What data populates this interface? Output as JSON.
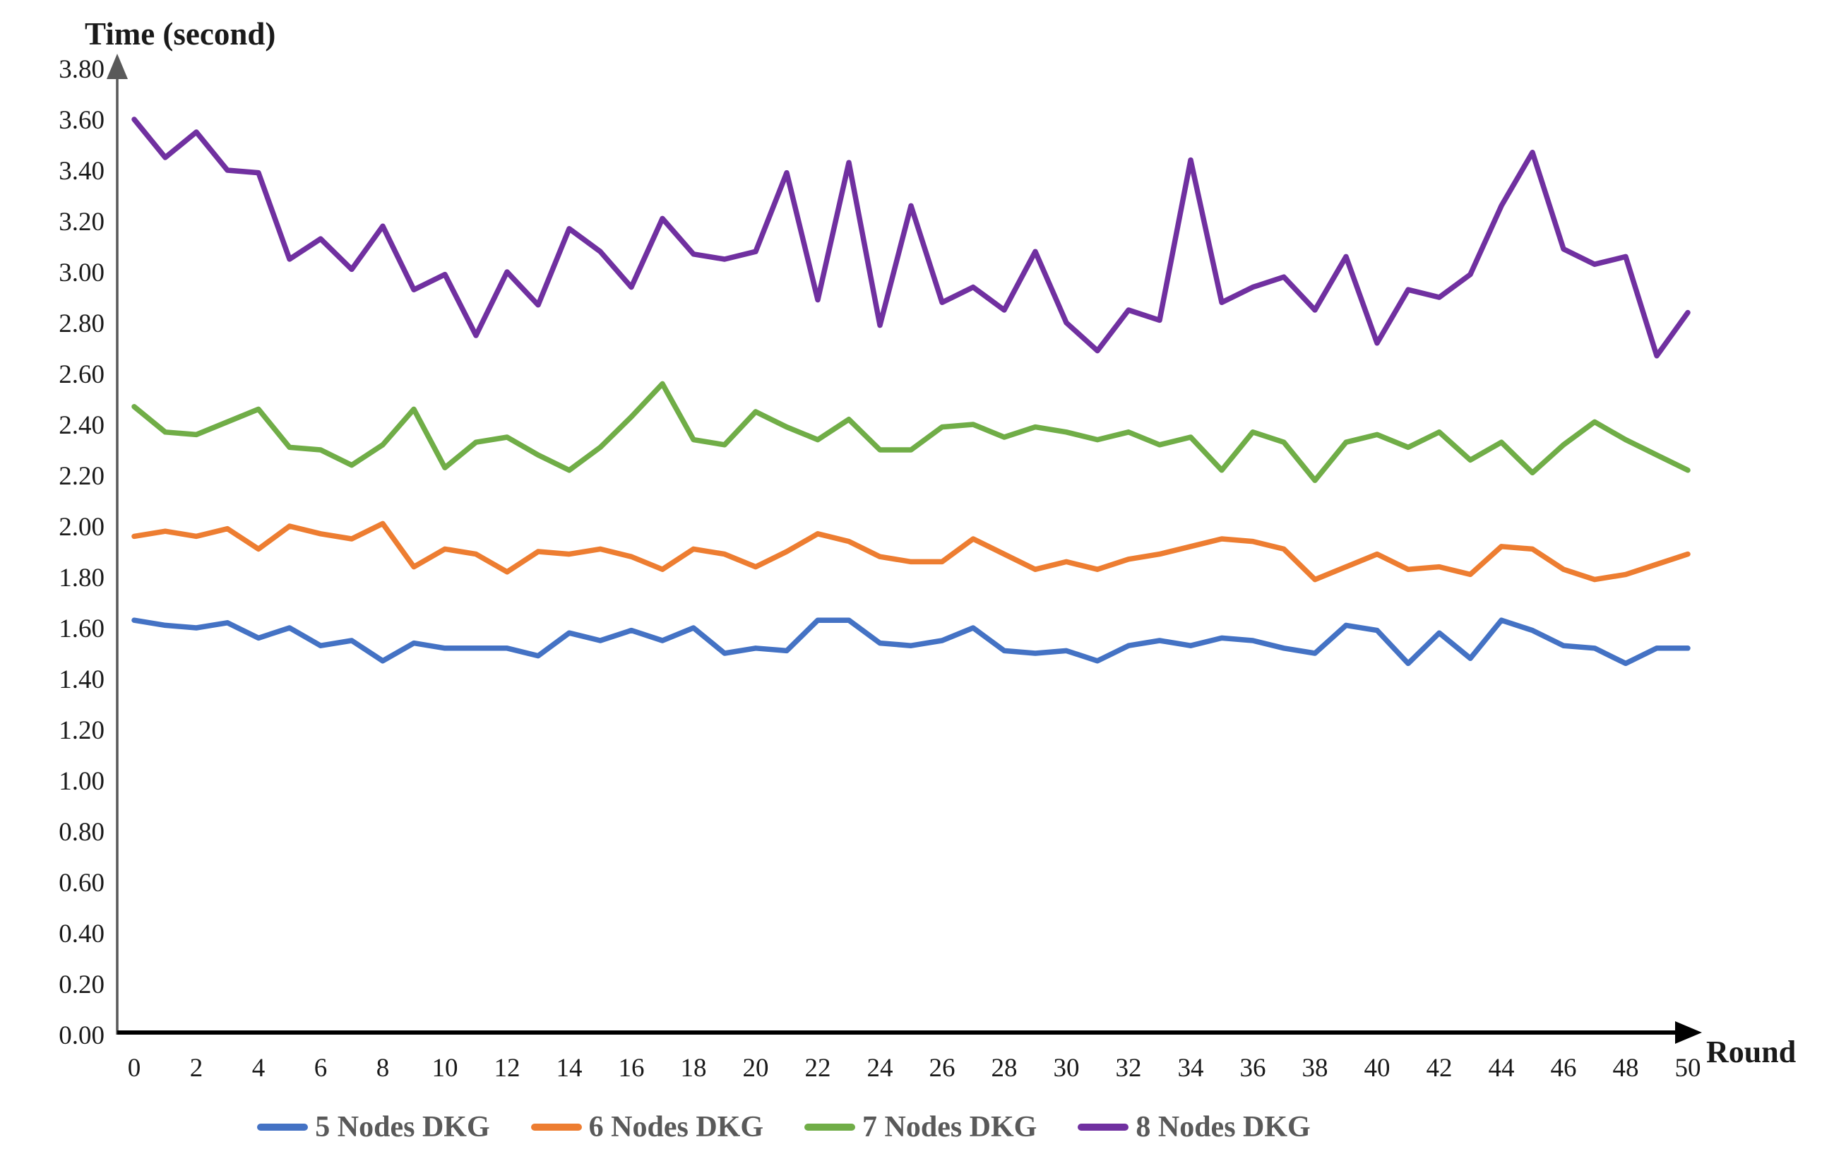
{
  "chart_data": {
    "type": "line",
    "title": "",
    "y_axis_title": "Time (second)",
    "x_axis_title": "Round",
    "grid": false,
    "legend_position": "bottom",
    "x_range": [
      0,
      50
    ],
    "x_step": 1,
    "ylim": [
      0.0,
      3.8
    ],
    "y_tick_step": 0.2,
    "y_ticks": [
      "0.00",
      "0.20",
      "0.40",
      "0.60",
      "0.80",
      "1.00",
      "1.20",
      "1.40",
      "1.60",
      "1.80",
      "2.00",
      "2.20",
      "2.40",
      "2.60",
      "2.80",
      "3.00",
      "3.20",
      "3.40",
      "3.60",
      "3.80"
    ],
    "x_ticks": [
      0,
      2,
      4,
      6,
      8,
      10,
      12,
      14,
      16,
      18,
      20,
      22,
      24,
      26,
      28,
      30,
      32,
      34,
      36,
      38,
      40,
      42,
      44,
      46,
      48,
      50
    ],
    "axis_color_y": "#595959",
    "axis_color_x": "#000000",
    "tick_label_color": "#1a1a1a",
    "legend_text_color": "#595959",
    "series": [
      {
        "name": "5 Nodes DKG",
        "color": "#4472C4",
        "values": [
          1.63,
          1.61,
          1.6,
          1.62,
          1.56,
          1.6,
          1.53,
          1.55,
          1.47,
          1.54,
          1.52,
          1.52,
          1.52,
          1.49,
          1.58,
          1.55,
          1.59,
          1.55,
          1.6,
          1.5,
          1.52,
          1.51,
          1.63,
          1.63,
          1.54,
          1.53,
          1.55,
          1.6,
          1.51,
          1.5,
          1.51,
          1.47,
          1.53,
          1.55,
          1.53,
          1.56,
          1.55,
          1.52,
          1.5,
          1.61,
          1.59,
          1.46,
          1.58,
          1.48,
          1.63,
          1.59,
          1.53,
          1.52,
          1.46,
          1.52,
          1.52
        ]
      },
      {
        "name": "6 Nodes DKG",
        "color": "#ED7D31",
        "values": [
          1.96,
          1.98,
          1.96,
          1.99,
          1.91,
          2.0,
          1.97,
          1.95,
          2.01,
          1.84,
          1.91,
          1.89,
          1.82,
          1.9,
          1.89,
          1.91,
          1.88,
          1.83,
          1.91,
          1.89,
          1.84,
          1.9,
          1.97,
          1.94,
          1.88,
          1.86,
          1.86,
          1.95,
          1.89,
          1.83,
          1.86,
          1.83,
          1.87,
          1.89,
          1.92,
          1.95,
          1.94,
          1.91,
          1.79,
          1.84,
          1.89,
          1.83,
          1.84,
          1.81,
          1.92,
          1.91,
          1.83,
          1.79,
          1.81,
          1.85,
          1.89
        ]
      },
      {
        "name": "7 Nodes DKG",
        "color": "#70AD47",
        "values": [
          2.47,
          2.37,
          2.36,
          2.41,
          2.46,
          2.31,
          2.3,
          2.24,
          2.32,
          2.46,
          2.23,
          2.33,
          2.35,
          2.28,
          2.22,
          2.31,
          2.43,
          2.56,
          2.34,
          2.32,
          2.45,
          2.39,
          2.34,
          2.42,
          2.3,
          2.3,
          2.39,
          2.4,
          2.35,
          2.39,
          2.37,
          2.34,
          2.37,
          2.32,
          2.35,
          2.22,
          2.37,
          2.33,
          2.18,
          2.33,
          2.36,
          2.31,
          2.37,
          2.26,
          2.33,
          2.21,
          2.32,
          2.41,
          2.34,
          2.28,
          2.22
        ]
      },
      {
        "name": "8 Nodes DKG",
        "color": "#7030A0",
        "values": [
          3.6,
          3.45,
          3.55,
          3.4,
          3.39,
          3.05,
          3.13,
          3.01,
          3.18,
          2.93,
          2.99,
          2.75,
          3.0,
          2.87,
          3.17,
          3.08,
          2.94,
          3.21,
          3.07,
          3.05,
          3.08,
          3.39,
          2.89,
          3.43,
          2.79,
          3.26,
          2.88,
          2.94,
          2.85,
          3.08,
          2.8,
          2.69,
          2.85,
          2.81,
          3.44,
          2.88,
          2.94,
          2.98,
          2.85,
          3.06,
          2.72,
          2.93,
          2.9,
          2.99,
          3.26,
          3.47,
          3.09,
          3.03,
          3.06,
          2.67,
          2.84
        ]
      }
    ]
  }
}
